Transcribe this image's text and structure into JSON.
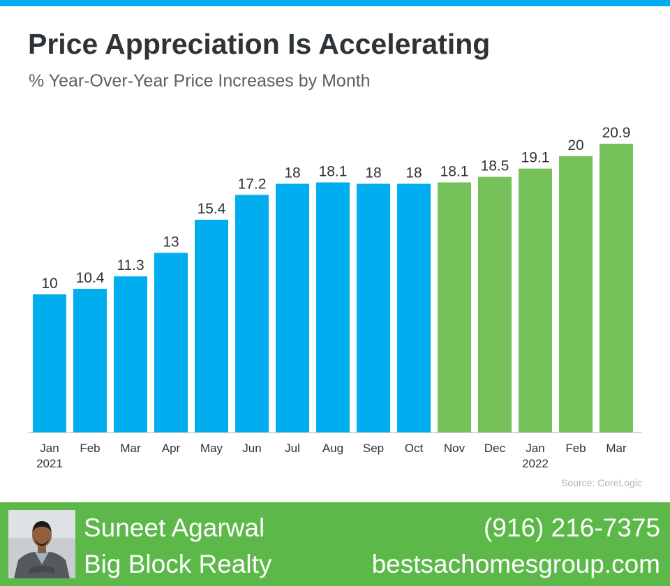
{
  "header": {
    "title": "Price Appreciation Is Accelerating",
    "subtitle": "% Year-Over-Year Price Increases by Month"
  },
  "chart_data": {
    "type": "bar",
    "title": "Price Appreciation Is Accelerating",
    "subtitle": "% Year-Over-Year Price Increases by Month",
    "categories": [
      "Jan",
      "Feb",
      "Mar",
      "Apr",
      "May",
      "Jun",
      "Jul",
      "Aug",
      "Sep",
      "Oct",
      "Nov",
      "Dec",
      "Jan",
      "Feb",
      "Mar"
    ],
    "category_sublabels": [
      "2021",
      "",
      "",
      "",
      "",
      "",
      "",
      "",
      "",
      "",
      "",
      "",
      "2022",
      "",
      ""
    ],
    "values": [
      10,
      10.4,
      11.3,
      13,
      15.4,
      17.2,
      18,
      18.1,
      18,
      18,
      18.1,
      18.5,
      19.1,
      20,
      20.9
    ],
    "value_labels": [
      "10",
      "10.4",
      "11.3",
      "13",
      "15.4",
      "17.2",
      "18",
      "18.1",
      "18",
      "18",
      "18.1",
      "18.5",
      "19.1",
      "20",
      "20.9"
    ],
    "bar_colors": [
      "#00aeef",
      "#00aeef",
      "#00aeef",
      "#00aeef",
      "#00aeef",
      "#00aeef",
      "#00aeef",
      "#00aeef",
      "#00aeef",
      "#00aeef",
      "#76c15a",
      "#76c15a",
      "#76c15a",
      "#76c15a",
      "#76c15a"
    ],
    "ylim": [
      0,
      21
    ],
    "grid": false,
    "legend": "none"
  },
  "source": "Source: CoreLogic",
  "footer": {
    "agent_name": "Suneet Agarwal",
    "company": "Big Block Realty",
    "phone": "(916) 216-7375",
    "website": "bestsachomesgroup.com"
  },
  "colors": {
    "accent_blue": "#00aeef",
    "accent_green": "#76c15a",
    "footer_green": "#5cb949",
    "title_text": "#2e3338"
  }
}
